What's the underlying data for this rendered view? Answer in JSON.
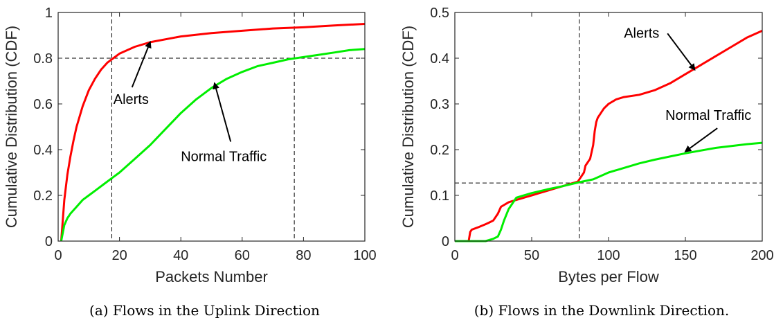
{
  "chart_data": [
    {
      "type": "line",
      "caption": "(a) Flows in the Uplink Direction",
      "xlabel": "Packets Number",
      "ylabel": "Cumulative Distribution (CDF)",
      "xlim": [
        0,
        100
      ],
      "ylim": [
        0,
        1
      ],
      "xticks": [
        0,
        20,
        40,
        60,
        80,
        100
      ],
      "yticks": [
        0,
        0.2,
        0.4,
        0.6,
        0.8,
        1
      ],
      "ytick_labels": [
        "0",
        "0.2",
        "0.4",
        "0.6",
        "0.8",
        "1"
      ],
      "grid": false,
      "series": [
        {
          "color": "#ff0000",
          "x": [
            1,
            2,
            3,
            4,
            5,
            6,
            8,
            10,
            12,
            14,
            16,
            18,
            20,
            25,
            30,
            40,
            50,
            60,
            70,
            80,
            90,
            100
          ],
          "values": [
            0,
            0.18,
            0.29,
            0.37,
            0.44,
            0.5,
            0.59,
            0.66,
            0.71,
            0.75,
            0.78,
            0.8,
            0.82,
            0.85,
            0.87,
            0.895,
            0.91,
            0.92,
            0.93,
            0.935,
            0.943,
            0.95
          ]
        },
        {
          "color": "#00ee00",
          "x": [
            1,
            2,
            3,
            4,
            6,
            8,
            10,
            12,
            15,
            18,
            20,
            25,
            30,
            35,
            40,
            45,
            50,
            55,
            60,
            65,
            70,
            75,
            80,
            85,
            90,
            95,
            100
          ],
          "values": [
            0,
            0.07,
            0.1,
            0.12,
            0.15,
            0.18,
            0.2,
            0.22,
            0.25,
            0.28,
            0.3,
            0.36,
            0.42,
            0.49,
            0.56,
            0.62,
            0.67,
            0.71,
            0.74,
            0.765,
            0.78,
            0.795,
            0.805,
            0.815,
            0.825,
            0.835,
            0.84
          ]
        }
      ],
      "reference_lines": {
        "vertical": [
          17.5,
          77
        ],
        "horizontal": [
          0.8
        ]
      },
      "annotations": [
        {
          "text": "Alerts",
          "tx": 18,
          "ty": 0.6,
          "ax": 30,
          "ay": 0.87
        },
        {
          "text": "Normal Traffic",
          "tx": 40,
          "ty": 0.35,
          "ax": 51,
          "ay": 0.69
        }
      ]
    },
    {
      "type": "line",
      "caption": "(b) Flows in the Downlink Direction.",
      "xlabel": "Bytes per Flow",
      "ylabel": "Cumulative Distribution (CDF)",
      "xlim": [
        0,
        200
      ],
      "ylim": [
        0,
        0.5
      ],
      "xticks": [
        0,
        50,
        100,
        150,
        200
      ],
      "yticks": [
        0,
        0.1,
        0.2,
        0.3,
        0.4,
        0.5
      ],
      "ytick_labels": [
        "0",
        "0.1",
        "0.2",
        "0.3",
        "0.4",
        "0.5"
      ],
      "grid": false,
      "series": [
        {
          "color": "#ff0000",
          "x": [
            0,
            9,
            10,
            11,
            15,
            20,
            22,
            25,
            28,
            30,
            35,
            40,
            45,
            50,
            55,
            60,
            65,
            70,
            75,
            80,
            84,
            85,
            88,
            90,
            91,
            92,
            93,
            95,
            97,
            100,
            105,
            110,
            120,
            130,
            140,
            150,
            160,
            170,
            180,
            190,
            200
          ],
          "values": [
            0,
            0,
            0.02,
            0.025,
            0.03,
            0.037,
            0.04,
            0.045,
            0.06,
            0.075,
            0.085,
            0.09,
            0.095,
            0.1,
            0.105,
            0.11,
            0.115,
            0.12,
            0.125,
            0.13,
            0.15,
            0.165,
            0.18,
            0.21,
            0.24,
            0.26,
            0.27,
            0.28,
            0.29,
            0.3,
            0.31,
            0.315,
            0.32,
            0.33,
            0.345,
            0.365,
            0.385,
            0.405,
            0.425,
            0.445,
            0.46
          ]
        },
        {
          "color": "#00ee00",
          "x": [
            0,
            20,
            25,
            28,
            30,
            32,
            35,
            38,
            40,
            45,
            50,
            60,
            70,
            80,
            90,
            100,
            110,
            120,
            130,
            140,
            150,
            160,
            170,
            180,
            190,
            200
          ],
          "values": [
            0,
            0,
            0.005,
            0.01,
            0.025,
            0.045,
            0.07,
            0.085,
            0.095,
            0.1,
            0.105,
            0.113,
            0.12,
            0.128,
            0.135,
            0.15,
            0.16,
            0.17,
            0.178,
            0.185,
            0.192,
            0.198,
            0.204,
            0.208,
            0.212,
            0.215
          ]
        }
      ],
      "reference_lines": {
        "vertical": [
          81
        ],
        "horizontal": [
          0.127
        ]
      },
      "annotations": [
        {
          "text": "Alerts",
          "tx": 110,
          "ty": 0.445,
          "ax": 156,
          "ay": 0.375
        },
        {
          "text": "Normal Traffic",
          "tx": 137,
          "ty": 0.265,
          "ax": 150,
          "ay": 0.196
        }
      ]
    }
  ]
}
